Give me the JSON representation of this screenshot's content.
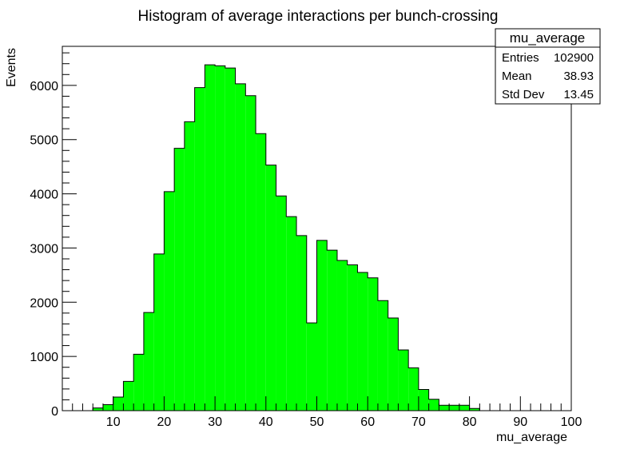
{
  "chart_data": {
    "type": "bar",
    "title": "Histogram of average interactions per bunch-crossing",
    "xlabel": "mu_average",
    "ylabel": "Events",
    "xlim": [
      0,
      100
    ],
    "ylim": [
      0,
      6720
    ],
    "bin_width": 2,
    "x_ticks": [
      10,
      20,
      30,
      40,
      50,
      60,
      70,
      80,
      90,
      100
    ],
    "y_ticks": [
      0,
      1000,
      2000,
      3000,
      4000,
      5000,
      6000
    ],
    "bins": [
      {
        "x0": 6,
        "x1": 8,
        "value": 50
      },
      {
        "x0": 8,
        "x1": 10,
        "value": 110
      },
      {
        "x0": 10,
        "x1": 12,
        "value": 250
      },
      {
        "x0": 12,
        "x1": 14,
        "value": 540
      },
      {
        "x0": 14,
        "x1": 16,
        "value": 1040
      },
      {
        "x0": 16,
        "x1": 18,
        "value": 1810
      },
      {
        "x0": 18,
        "x1": 20,
        "value": 2890
      },
      {
        "x0": 20,
        "x1": 22,
        "value": 4040
      },
      {
        "x0": 22,
        "x1": 24,
        "value": 4840
      },
      {
        "x0": 24,
        "x1": 26,
        "value": 5330
      },
      {
        "x0": 26,
        "x1": 28,
        "value": 5960
      },
      {
        "x0": 28,
        "x1": 30,
        "value": 6380
      },
      {
        "x0": 30,
        "x1": 32,
        "value": 6360
      },
      {
        "x0": 32,
        "x1": 34,
        "value": 6320
      },
      {
        "x0": 34,
        "x1": 36,
        "value": 6030
      },
      {
        "x0": 36,
        "x1": 38,
        "value": 5810
      },
      {
        "x0": 38,
        "x1": 40,
        "value": 5110
      },
      {
        "x0": 40,
        "x1": 42,
        "value": 4530
      },
      {
        "x0": 42,
        "x1": 44,
        "value": 3960
      },
      {
        "x0": 44,
        "x1": 46,
        "value": 3580
      },
      {
        "x0": 46,
        "x1": 48,
        "value": 3230
      },
      {
        "x0": 48,
        "x1": 50,
        "value": 1620
      },
      {
        "x0": 50,
        "x1": 52,
        "value": 3140
      },
      {
        "x0": 52,
        "x1": 54,
        "value": 2960
      },
      {
        "x0": 54,
        "x1": 56,
        "value": 2770
      },
      {
        "x0": 56,
        "x1": 58,
        "value": 2690
      },
      {
        "x0": 58,
        "x1": 60,
        "value": 2550
      },
      {
        "x0": 60,
        "x1": 62,
        "value": 2450
      },
      {
        "x0": 62,
        "x1": 64,
        "value": 2030
      },
      {
        "x0": 64,
        "x1": 66,
        "value": 1710
      },
      {
        "x0": 66,
        "x1": 68,
        "value": 1120
      },
      {
        "x0": 68,
        "x1": 70,
        "value": 790
      },
      {
        "x0": 70,
        "x1": 72,
        "value": 390
      },
      {
        "x0": 72,
        "x1": 74,
        "value": 210
      },
      {
        "x0": 74,
        "x1": 76,
        "value": 100
      },
      {
        "x0": 76,
        "x1": 78,
        "value": 100
      },
      {
        "x0": 78,
        "x1": 80,
        "value": 100
      },
      {
        "x0": 80,
        "x1": 82,
        "value": 40
      }
    ],
    "fill_color": "#00ff00",
    "line_color": "#000000",
    "grid": false,
    "legend": "none",
    "stats_box": {
      "name": "mu_average",
      "placement": "top-right",
      "rows": [
        {
          "label": "Entries",
          "value": "102900"
        },
        {
          "label": "Mean",
          "value": "38.93"
        },
        {
          "label": "Std Dev",
          "value": "13.45"
        }
      ]
    }
  }
}
